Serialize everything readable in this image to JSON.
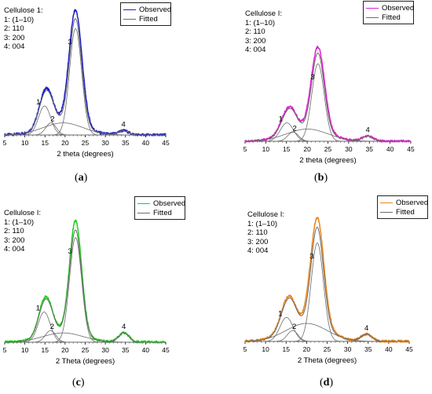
{
  "colors": {
    "fitted": "#6b6b6b",
    "axis": "#000000"
  },
  "panels": [
    {
      "id": "a",
      "caption_open": "(",
      "caption_letter": "a",
      "caption_close": ")",
      "assignments_title": "Cellulose 1:",
      "assignments": [
        "1: (1–10)",
        "2: 110",
        "3: 200",
        "4: 004"
      ],
      "legend": {
        "observed": "Observed",
        "fitted": "Fitted"
      },
      "observed_color": "#1f1fc8",
      "xlabel": "2 theta (degrees)"
    },
    {
      "id": "b",
      "caption_open": "(",
      "caption_letter": "b",
      "caption_close": ")",
      "assignments_title": "Cellulose I:",
      "assignments": [
        "1: (1–10)",
        "2: 110",
        "3: 200",
        "4: 004"
      ],
      "legend": {
        "observed": "Observed",
        "fitted": "Fitted"
      },
      "observed_color": "#e020d0",
      "xlabel": "2 theta (degrees)"
    },
    {
      "id": "c",
      "caption_open": "(",
      "caption_letter": "c",
      "caption_close": ")",
      "assignments_title": "Cellulose I:",
      "assignments": [
        "1: (1–10)",
        "2: 110",
        "3: 200",
        "4: 004"
      ],
      "legend": {
        "observed": "Observed",
        "fitted": "Fitted"
      },
      "observed_color": "#1ed01e",
      "xlabel": "2 Theta (degrees)"
    },
    {
      "id": "d",
      "caption_open": "(",
      "caption_letter": "d",
      "caption_close": ")",
      "assignments_title": "Cellulose I:",
      "assignments": [
        "1: (1–10)",
        "2: 110",
        "3: 200",
        "4: 004"
      ],
      "legend": {
        "observed": "Observed",
        "fitted": "Fitted"
      },
      "observed_color": "#e8861a",
      "xlabel": "2 Theta (degrees)"
    }
  ],
  "chart_data": [
    {
      "type": "line",
      "panel": "a",
      "xlabel": "2 theta (degrees)",
      "xlim": [
        5,
        45
      ],
      "xticks": [
        5,
        10,
        15,
        20,
        25,
        30,
        35,
        40,
        45
      ],
      "y_scale": "relative intensity (no axis printed)",
      "ymax": 1.0,
      "grid": false,
      "legend_position": "top-right",
      "series": [
        {
          "name": "Observed",
          "peaks": [
            [
              14.9,
              0.26,
              1.5
            ],
            [
              16.5,
              0.1,
              1.3
            ],
            [
              22.6,
              0.95,
              1.6
            ],
            [
              34.5,
              0.035,
              1.3
            ]
          ],
          "halo": [
            19.5,
            0.1,
            5.0
          ]
        },
        {
          "name": "Fitted",
          "components": [
            {
              "label": "1",
              "center": 14.9,
              "height": 0.24,
              "width": 1.5
            },
            {
              "label": "2",
              "center": 16.5,
              "height": 0.1,
              "width": 1.3
            },
            {
              "label": "3",
              "center": 22.6,
              "height": 0.88,
              "width": 1.5
            },
            {
              "label": "4",
              "center": 34.5,
              "height": 0.035,
              "width": 1.3
            },
            {
              "label": "",
              "center": 19.5,
              "height": 0.1,
              "width": 5.0
            }
          ]
        }
      ],
      "peak_labels": [
        "1",
        "2",
        "3",
        "4"
      ]
    },
    {
      "type": "line",
      "panel": "b",
      "xlabel": "2 theta (degrees)",
      "xlim": [
        5,
        45
      ],
      "xticks": [
        5,
        10,
        15,
        20,
        25,
        30,
        35,
        40,
        45
      ],
      "y_scale": "relative intensity (no axis printed)",
      "ymax": 1.0,
      "grid": false,
      "legend_position": "top-right",
      "series": [
        {
          "name": "Observed",
          "peaks": [
            [
              15.1,
              0.2,
              1.6
            ],
            [
              16.6,
              0.09,
              1.3
            ],
            [
              22.6,
              0.82,
              1.6
            ],
            [
              34.6,
              0.05,
              1.3
            ]
          ],
          "halo": [
            20.0,
            0.12,
            5.0
          ]
        },
        {
          "name": "Fitted",
          "components": [
            {
              "label": "1",
              "center": 15.1,
              "height": 0.18,
              "width": 1.6
            },
            {
              "label": "2",
              "center": 16.6,
              "height": 0.09,
              "width": 1.3
            },
            {
              "label": "3",
              "center": 22.6,
              "height": 0.76,
              "width": 1.5
            },
            {
              "label": "4",
              "center": 34.6,
              "height": 0.05,
              "width": 1.3
            },
            {
              "label": "",
              "center": 20.0,
              "height": 0.12,
              "width": 5.0
            }
          ]
        }
      ],
      "peak_labels": [
        "1",
        "2",
        "3",
        "4"
      ]
    },
    {
      "type": "line",
      "panel": "c",
      "xlabel": "2 Theta (degrees)",
      "xlim": [
        5,
        45
      ],
      "xticks": [
        5,
        10,
        15,
        20,
        25,
        30,
        35,
        40,
        45
      ],
      "y_scale": "relative intensity (no axis printed)",
      "ymax": 1.0,
      "grid": false,
      "legend_position": "top-right",
      "series": [
        {
          "name": "Observed",
          "peaks": [
            [
              14.8,
              0.28,
              1.5
            ],
            [
              16.4,
              0.1,
              1.3
            ],
            [
              22.6,
              0.98,
              1.5
            ],
            [
              34.6,
              0.08,
              1.3
            ]
          ],
          "halo": [
            19.5,
            0.08,
            5.0
          ]
        },
        {
          "name": "Fitted",
          "components": [
            {
              "label": "1",
              "center": 14.8,
              "height": 0.26,
              "width": 1.5
            },
            {
              "label": "2",
              "center": 16.4,
              "height": 0.1,
              "width": 1.3
            },
            {
              "label": "3",
              "center": 22.6,
              "height": 0.9,
              "width": 1.5
            },
            {
              "label": "4",
              "center": 34.6,
              "height": 0.08,
              "width": 1.3
            },
            {
              "label": "",
              "center": 19.5,
              "height": 0.08,
              "width": 5.0
            }
          ]
        }
      ],
      "peak_labels": [
        "1",
        "2",
        "3",
        "4"
      ]
    },
    {
      "type": "line",
      "panel": "d",
      "xlabel": "2 Theta (degrees)",
      "xlim": [
        5,
        45
      ],
      "xticks": [
        5,
        10,
        15,
        20,
        25,
        30,
        35,
        40,
        45
      ],
      "y_scale": "relative intensity (no axis printed)",
      "ymax": 1.0,
      "grid": false,
      "legend_position": "top-right",
      "series": [
        {
          "name": "Observed",
          "peaks": [
            [
              15.1,
              0.22,
              1.6
            ],
            [
              16.6,
              0.09,
              1.3
            ],
            [
              22.6,
              0.9,
              1.6
            ],
            [
              34.6,
              0.06,
              1.3
            ]
          ],
          "halo": [
            20.0,
            0.15,
            5.0
          ]
        },
        {
          "name": "Fitted",
          "components": [
            {
              "label": "1",
              "center": 15.1,
              "height": 0.2,
              "width": 1.6
            },
            {
              "label": "2",
              "center": 16.6,
              "height": 0.09,
              "width": 1.3
            },
            {
              "label": "3",
              "center": 22.6,
              "height": 0.82,
              "width": 1.5
            },
            {
              "label": "4",
              "center": 34.6,
              "height": 0.06,
              "width": 1.3
            },
            {
              "label": "",
              "center": 20.0,
              "height": 0.15,
              "width": 5.0
            }
          ]
        }
      ],
      "peak_labels": [
        "1",
        "2",
        "3",
        "4"
      ]
    }
  ]
}
